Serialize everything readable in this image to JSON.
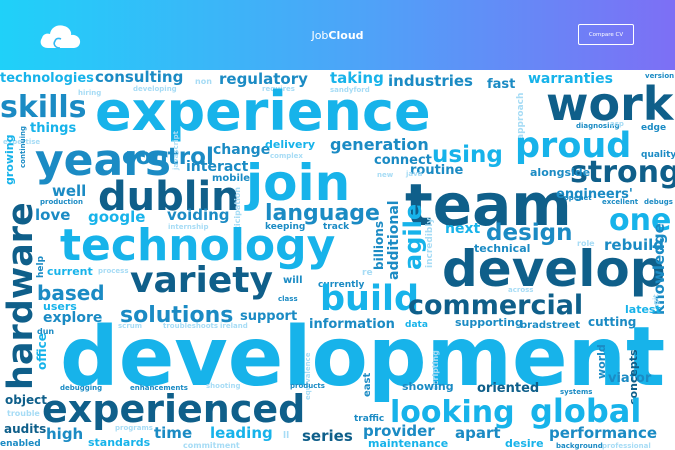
{
  "header": {
    "brand_prefix": "Job",
    "brand_suffix": "Cloud",
    "logo_icon": "cloud-icon",
    "cta_label": "Compare CV",
    "gradient": [
      "#1fd1f9",
      "#7d6ff5"
    ]
  },
  "palette": [
    "#0f5f8a",
    "#1b8bc4",
    "#17b3ea",
    "#6cc9f0",
    "#a7dcf5"
  ],
  "word_cloud": [
    {
      "w": "technologies"
    },
    {
      "w": "consulting"
    },
    {
      "w": "non"
    },
    {
      "w": "regulatory"
    },
    {
      "w": "taking"
    },
    {
      "w": "industries"
    },
    {
      "w": "fast"
    },
    {
      "w": "warranties"
    },
    {
      "w": "version"
    },
    {
      "w": "hiring"
    },
    {
      "w": "developing"
    },
    {
      "w": "requires"
    },
    {
      "w": "sandyford"
    },
    {
      "w": "skills"
    },
    {
      "w": "experience"
    },
    {
      "w": "work"
    },
    {
      "w": "approach"
    },
    {
      "w": "diagnosing"
    },
    {
      "w": "asp"
    },
    {
      "w": "edge"
    },
    {
      "w": "things"
    },
    {
      "w": "expertise"
    },
    {
      "w": "proud"
    },
    {
      "w": "years"
    },
    {
      "w": "control"
    },
    {
      "w": "javascript"
    },
    {
      "w": "change"
    },
    {
      "w": "delivery"
    },
    {
      "w": "complex"
    },
    {
      "w": "generation"
    },
    {
      "w": "using"
    },
    {
      "w": "quality"
    },
    {
      "w": "growing"
    },
    {
      "w": "continuing"
    },
    {
      "w": "interact"
    },
    {
      "w": "join"
    },
    {
      "w": "connect"
    },
    {
      "w": "routine"
    },
    {
      "w": "strong"
    },
    {
      "w": "dublin"
    },
    {
      "w": "mobile"
    },
    {
      "w": "team"
    },
    {
      "w": "new"
    },
    {
      "w": "java"
    },
    {
      "w": "alongside"
    },
    {
      "w": "well"
    },
    {
      "w": "production"
    },
    {
      "w": "engineers'"
    },
    {
      "w": "excellent"
    },
    {
      "w": "debugs"
    },
    {
      "w": "love"
    },
    {
      "w": "google"
    },
    {
      "w": "voiding"
    },
    {
      "w": "participation"
    },
    {
      "w": "language"
    },
    {
      "w": "openet"
    },
    {
      "w": "one"
    },
    {
      "w": "internship"
    },
    {
      "w": "keeping"
    },
    {
      "w": "track"
    },
    {
      "w": "billions"
    },
    {
      "w": "incredibly"
    },
    {
      "w": "next"
    },
    {
      "w": "design"
    },
    {
      "w": "technology"
    },
    {
      "w": "agile"
    },
    {
      "w": "technical"
    },
    {
      "w": "role"
    },
    {
      "w": "rebuild"
    },
    {
      "w": "help"
    },
    {
      "w": "additional"
    },
    {
      "w": "develop"
    },
    {
      "w": "current"
    },
    {
      "w": "process"
    },
    {
      "w": "variety"
    },
    {
      "w": "re"
    },
    {
      "w": "knowledge"
    },
    {
      "w": "hardware"
    },
    {
      "w": "based"
    },
    {
      "w": "will"
    },
    {
      "w": "currently"
    },
    {
      "w": "build"
    },
    {
      "w": "across"
    },
    {
      "w": "git"
    },
    {
      "w": "users"
    },
    {
      "w": "class"
    },
    {
      "w": "commercial"
    },
    {
      "w": "latest"
    },
    {
      "w": "explore"
    },
    {
      "w": "solutions"
    },
    {
      "w": "support"
    },
    {
      "w": "information"
    },
    {
      "w": "data"
    },
    {
      "w": "supporting"
    },
    {
      "w": "bradstreet"
    },
    {
      "w": "cutting"
    },
    {
      "w": "dun"
    },
    {
      "w": "scrum"
    },
    {
      "w": "troubleshoots"
    },
    {
      "w": "ireland"
    },
    {
      "w": "equivalence"
    },
    {
      "w": "office"
    },
    {
      "w": "development"
    },
    {
      "w": "scripting"
    },
    {
      "w": "world"
    },
    {
      "w": "debugging"
    },
    {
      "w": "enhancements"
    },
    {
      "w": "shooting"
    },
    {
      "w": "products"
    },
    {
      "w": "east"
    },
    {
      "w": "showing"
    },
    {
      "w": "oriented"
    },
    {
      "w": "systems"
    },
    {
      "w": "viator"
    },
    {
      "w": "concepts"
    },
    {
      "w": "object"
    },
    {
      "w": "experienced"
    },
    {
      "w": "looking"
    },
    {
      "w": "global"
    },
    {
      "w": "trouble"
    },
    {
      "w": "traffic"
    },
    {
      "w": "audits"
    },
    {
      "w": "programs"
    },
    {
      "w": "time"
    },
    {
      "w": "leading"
    },
    {
      "w": "ll"
    },
    {
      "w": "provider"
    },
    {
      "w": "apart"
    },
    {
      "w": "performance"
    },
    {
      "w": "high"
    },
    {
      "w": "series"
    },
    {
      "w": "enabled"
    },
    {
      "w": "standards"
    },
    {
      "w": "commitment"
    },
    {
      "w": "maintenance"
    },
    {
      "w": "desire"
    },
    {
      "w": "background"
    },
    {
      "w": "professional"
    }
  ]
}
